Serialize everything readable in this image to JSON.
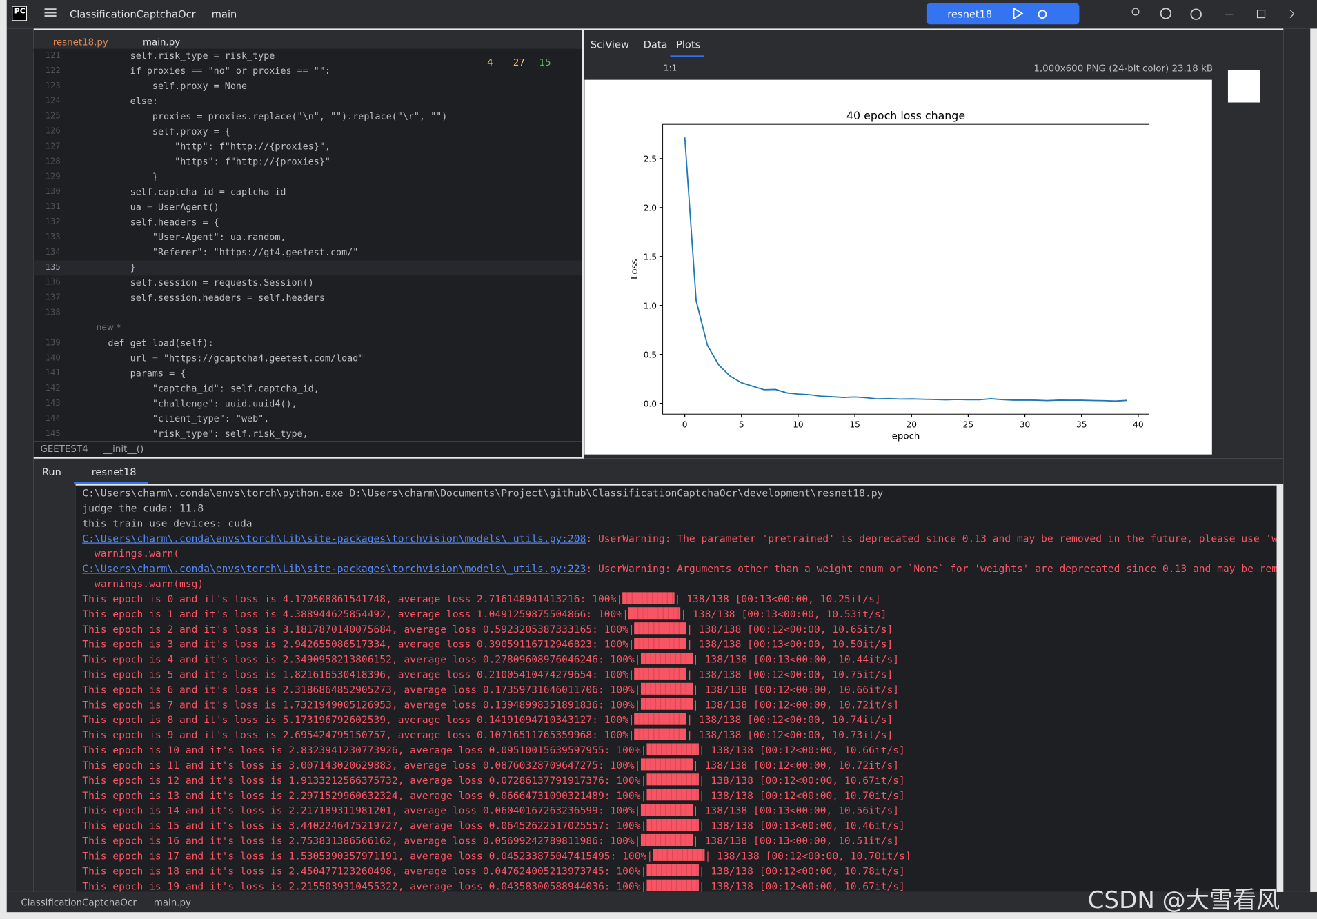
{
  "toolbar": {
    "project": "ClassificationCaptchaOcr",
    "branch": "main",
    "run_config": "resnet18"
  },
  "editor_tabs": [
    "resnet18.py",
    "main.py"
  ],
  "inspections": {
    "errors": "4",
    "warnings": "27",
    "ok": "15"
  },
  "code": [
    {
      "n": "121",
      "text": "        self.risk_type = risk_type"
    },
    {
      "n": "122",
      "text": "        if proxies == \"no\" or proxies == \"\":"
    },
    {
      "n": "123",
      "text": "            self.proxy = None"
    },
    {
      "n": "124",
      "text": "        else:"
    },
    {
      "n": "125",
      "text": "            proxies = proxies.replace(\"\\n\", \"\").replace(\"\\r\", \"\")"
    },
    {
      "n": "126",
      "text": "            self.proxy = {"
    },
    {
      "n": "127",
      "text": "                \"http\": f\"http://{proxies}\","
    },
    {
      "n": "128",
      "text": "                \"https\": f\"http://{proxies}\""
    },
    {
      "n": "129",
      "text": "            }"
    },
    {
      "n": "130",
      "text": "        self.captcha_id = captcha_id"
    },
    {
      "n": "131",
      "text": "        ua = UserAgent()"
    },
    {
      "n": "132",
      "text": "        self.headers = {"
    },
    {
      "n": "133",
      "text": "            \"User-Agent\": ua.random,"
    },
    {
      "n": "134",
      "text": "            \"Referer\": \"https://gt4.geetest.com/\""
    },
    {
      "n": "135",
      "text": "        }"
    },
    {
      "n": "136",
      "text": "        self.session = requests.Session()"
    },
    {
      "n": "137",
      "text": "        self.session.headers = self.headers"
    },
    {
      "n": "138"
    },
    {
      "hint": "    new *"
    },
    {
      "n": "139",
      "text": "    def get_load(self):"
    },
    {
      "n": "140",
      "text": "        url = \"https://gcaptcha4.geetest.com/load\""
    },
    {
      "n": "141",
      "text": "        params = {"
    },
    {
      "n": "142",
      "text": "            \"captcha_id\": self.captcha_id,"
    },
    {
      "n": "143",
      "text": "            \"challenge\": uuid.uuid4(),"
    },
    {
      "n": "144",
      "text": "            \"client_type\": \"web\","
    },
    {
      "n": "145",
      "text": "            \"risk_type\": self.risk_type,"
    }
  ],
  "breadcrumb": [
    "GEETEST4",
    "__init__()"
  ],
  "sciview_tabs": [
    "SciView",
    "Data",
    "Plots"
  ],
  "zoom": "1:1",
  "image_info": "1,000x600 PNG (24-bit color) 23.18 kB",
  "chart_data": {
    "type": "line",
    "title": "40 epoch loss change",
    "xlabel": "epoch",
    "ylabel": "Loss",
    "color": "#1f77b4",
    "x": [
      0,
      1,
      2,
      3,
      4,
      5,
      6,
      7,
      8,
      9,
      10,
      11,
      12,
      13,
      14,
      15,
      16,
      17,
      18,
      19,
      20,
      21,
      22,
      23,
      24,
      25,
      26,
      27,
      28,
      29,
      30,
      31,
      32,
      33,
      34,
      35,
      36,
      37,
      38,
      39
    ],
    "values": [
      2.716,
      1.049,
      0.592,
      0.391,
      0.278,
      0.21,
      0.174,
      0.139,
      0.142,
      0.107,
      0.095,
      0.088,
      0.073,
      0.067,
      0.06,
      0.065,
      0.057,
      0.045,
      0.048,
      0.044,
      0.045,
      0.042,
      0.04,
      0.036,
      0.04,
      0.037,
      0.037,
      0.047,
      0.038,
      0.033,
      0.034,
      0.032,
      0.028,
      0.033,
      0.032,
      0.032,
      0.029,
      0.027,
      0.023,
      0.03
    ],
    "xlim": [
      -1.95,
      40.95
    ],
    "ylim": [
      -0.11,
      2.85
    ],
    "xticks": [
      0,
      5,
      10,
      15,
      20,
      25,
      30,
      35,
      40
    ],
    "yticks": [
      {
        "value": 0,
        "label": "0.0"
      },
      0.5,
      {
        "value": 1,
        "label": "1.0"
      },
      1.5,
      {
        "value": 2,
        "label": "2.0"
      },
      2.5
    ]
  },
  "run": {
    "title": "Run",
    "tab": "resnet18",
    "lines": [
      {
        "text": "C:\\Users\\charm\\.conda\\envs\\torch\\python.exe D:\\Users\\charm\\Documents\\Project\\github\\ClassificationCaptchaOcr\\development\\resnet18.py"
      },
      {
        "text": "judge the cuda: 11.8"
      },
      {
        "text": "this train use devices: cuda"
      },
      {
        "link": "C:\\Users\\charm\\.conda\\envs\\torch\\Lib\\site-packages\\torchvision\\models\\_utils.py:208",
        "warn": ": UserWarning: The parameter 'pretrained' is deprecated since 0.13 and may be removed in the future, please use 'weights' instead."
      },
      {
        "warn": "  warnings.warn("
      },
      {
        "link": "C:\\Users\\charm\\.conda\\envs\\torch\\Lib\\site-packages\\torchvision\\models\\_utils.py:223",
        "warn": ": UserWarning: Arguments other than a weight enum or `None` for 'weights' are deprecated since 0.13 and may be removed in the future."
      },
      {
        "warn": "  warnings.warn(msg)"
      },
      {
        "pre": "This epoch is 0 and it's loss is 4.170508861541748, average loss 2.716148941413216: 100%|",
        "post": "| 138/138 [00:13<00:00, 10.25it/s]"
      },
      {
        "pre": "This epoch is 1 and it's loss is 4.388944625854492, average loss 1.0491259875504866: 100%|",
        "post": "| 138/138 [00:13<00:00, 10.53it/s]"
      },
      {
        "pre": "This epoch is 2 and it's loss is 3.1817870140075684, average loss 0.5923205387333165: 100%|",
        "post": "| 138/138 [00:12<00:00, 10.65it/s]"
      },
      {
        "pre": "This epoch is 3 and it's loss is 2.942655086517334, average loss 0.39059116712946823: 100%|",
        "post": "| 138/138 [00:13<00:00, 10.50it/s]"
      },
      {
        "pre": "This epoch is 4 and it's loss is 2.3490958213806152, average loss 0.27809608976046246: 100%|",
        "post": "| 138/138 [00:13<00:00, 10.44it/s]"
      },
      {
        "pre": "This epoch is 5 and it's loss is 1.821616530418396, average loss 0.21005410474279654: 100%|",
        "post": "| 138/138 [00:12<00:00, 10.75it/s]"
      },
      {
        "pre": "This epoch is 6 and it's loss is 2.3186864852905273, average loss 0.17359731646011706: 100%|",
        "post": "| 138/138 [00:12<00:00, 10.66it/s]"
      },
      {
        "pre": "This epoch is 7 and it's loss is 1.7321949005126953, average loss 0.13948998351891836: 100%|",
        "post": "| 138/138 [00:12<00:00, 10.72it/s]"
      },
      {
        "pre": "This epoch is 8 and it's loss is 5.173196792602539, average loss 0.14191094710343127: 100%|",
        "post": "| 138/138 [00:12<00:00, 10.74it/s]"
      },
      {
        "pre": "This epoch is 9 and it's loss is 2.695424795150757, average loss 0.10716511765359968: 100%|",
        "post": "| 138/138 [00:12<00:00, 10.73it/s]"
      },
      {
        "pre": "This epoch is 10 and it's loss is 2.8323941230773926, average loss 0.09510015639597955: 100%|",
        "post": "| 138/138 [00:12<00:00, 10.66it/s]"
      },
      {
        "pre": "This epoch is 11 and it's loss is 3.007143020629883, average loss 0.08760328709647275: 100%|",
        "post": "| 138/138 [00:12<00:00, 10.72it/s]"
      },
      {
        "pre": "This epoch is 12 and it's loss is 1.9133212566375732, average loss 0.07286137791917376: 100%|",
        "post": "| 138/138 [00:12<00:00, 10.67it/s]"
      },
      {
        "pre": "This epoch is 13 and it's loss is 2.2971529960632324, average loss 0.06664731090321489: 100%|",
        "post": "| 138/138 [00:12<00:00, 10.70it/s]"
      },
      {
        "pre": "This epoch is 14 and it's loss is 2.217189311981201, average loss 0.06040167263236599: 100%|",
        "post": "| 138/138 [00:13<00:00, 10.56it/s]"
      },
      {
        "pre": "This epoch is 15 and it's loss is 3.4402246475219727, average loss 0.06452622517025557: 100%|",
        "post": "| 138/138 [00:13<00:00, 10.46it/s]"
      },
      {
        "pre": "This epoch is 16 and it's loss is 2.753831386566162, average loss 0.05699242789811986: 100%|",
        "post": "| 138/138 [00:13<00:00, 10.51it/s]"
      },
      {
        "pre": "This epoch is 17 and it's loss is 1.5305390357971191, average loss 0.045233875047415495: 100%|",
        "post": "| 138/138 [00:12<00:00, 10.70it/s]"
      },
      {
        "pre": "This epoch is 18 and it's loss is 2.450477123260498, average loss 0.047624005213973745: 100%|",
        "post": "| 138/138 [00:12<00:00, 10.78it/s]"
      },
      {
        "pre": "This epoch is 19 and it's loss is 2.2155039310455322, average loss 0.04358300588944036: 100%|",
        "post": "| 138/138 [00:12<00:00, 10.67it/s]"
      }
    ]
  },
  "status": {
    "project": "ClassificationCaptchaOcr",
    "file": "main.py"
  },
  "watermark": "CSDN @大雪看风"
}
